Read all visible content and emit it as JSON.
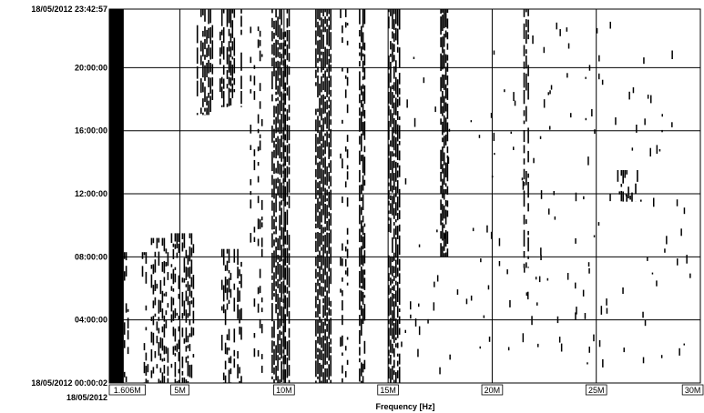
{
  "chart_data": {
    "type": "heatmap",
    "title": "",
    "xlabel": "Frequency [Hz]",
    "ylabel": "",
    "xlim": [
      1.606,
      30
    ],
    "y_start_label": "18/05/2012 00:00:02",
    "y_end_label": "18/05/2012 23:42:57",
    "y_bottom_sub_label": "18/05/2012",
    "y_tick_labels": [
      "04:00:00",
      "08:00:00",
      "12:00:00",
      "16:00:00",
      "20:00:00"
    ],
    "y_ticks_hours": [
      4,
      8,
      12,
      16,
      20
    ],
    "y_range_hours": [
      0,
      23.716
    ],
    "x_ticks": [
      {
        "value": 1.606,
        "label": "1.606M"
      },
      {
        "value": 5,
        "label": "5M"
      },
      {
        "value": 10,
        "label": "10M"
      },
      {
        "value": 15,
        "label": "15M"
      },
      {
        "value": 20,
        "label": "20M"
      },
      {
        "value": 25,
        "label": "25M"
      },
      {
        "value": 30,
        "label": "30M"
      }
    ],
    "grid": true,
    "colors": {
      "signal": "#000000",
      "background": "#ffffff",
      "grid": "#000000"
    },
    "bands": [
      {
        "mhz": [
          1.606,
          2.3
        ],
        "hours": [
          0,
          23.716
        ],
        "density": 1.0
      },
      {
        "mhz": [
          2.3,
          3.6
        ],
        "hours": [
          0,
          8.3
        ],
        "density": 0.45
      },
      {
        "mhz": [
          3.6,
          4.3
        ],
        "hours": [
          0,
          9.2
        ],
        "density": 0.5
      },
      {
        "mhz": [
          4.3,
          5.7
        ],
        "hours": [
          0,
          9.5
        ],
        "density": 0.55
      },
      {
        "mhz": [
          5.8,
          6.8
        ],
        "hours": [
          17,
          23.716
        ],
        "density": 0.75
      },
      {
        "mhz": [
          6.9,
          8.0
        ],
        "hours": [
          0,
          8.5
        ],
        "density": 0.6
      },
      {
        "mhz": [
          6.9,
          8.0
        ],
        "hours": [
          17.5,
          23.716
        ],
        "density": 0.7
      },
      {
        "mhz": [
          8.0,
          9.0
        ],
        "hours": [
          0,
          23.716
        ],
        "density": 0.35
      },
      {
        "mhz": [
          9.4,
          10.3
        ],
        "hours": [
          0,
          23.716
        ],
        "density": 0.8
      },
      {
        "mhz": [
          11.5,
          12.3
        ],
        "hours": [
          0,
          23.716
        ],
        "density": 0.85
      },
      {
        "mhz": [
          12.6,
          13.1
        ],
        "hours": [
          0,
          23.716
        ],
        "density": 0.35
      },
      {
        "mhz": [
          13.6,
          14.0
        ],
        "hours": [
          0,
          23.716
        ],
        "density": 0.75
      },
      {
        "mhz": [
          15.0,
          15.6
        ],
        "hours": [
          0,
          23.716
        ],
        "density": 0.8
      },
      {
        "mhz": [
          17.5,
          17.9
        ],
        "hours": [
          8,
          23.716
        ],
        "density": 0.75
      },
      {
        "mhz": [
          21.5,
          21.8
        ],
        "hours": [
          7.3,
          23.716
        ],
        "density": 0.65
      },
      {
        "mhz": [
          26.0,
          27.2
        ],
        "hours": [
          11.5,
          13.5
        ],
        "density": 0.55
      }
    ]
  }
}
